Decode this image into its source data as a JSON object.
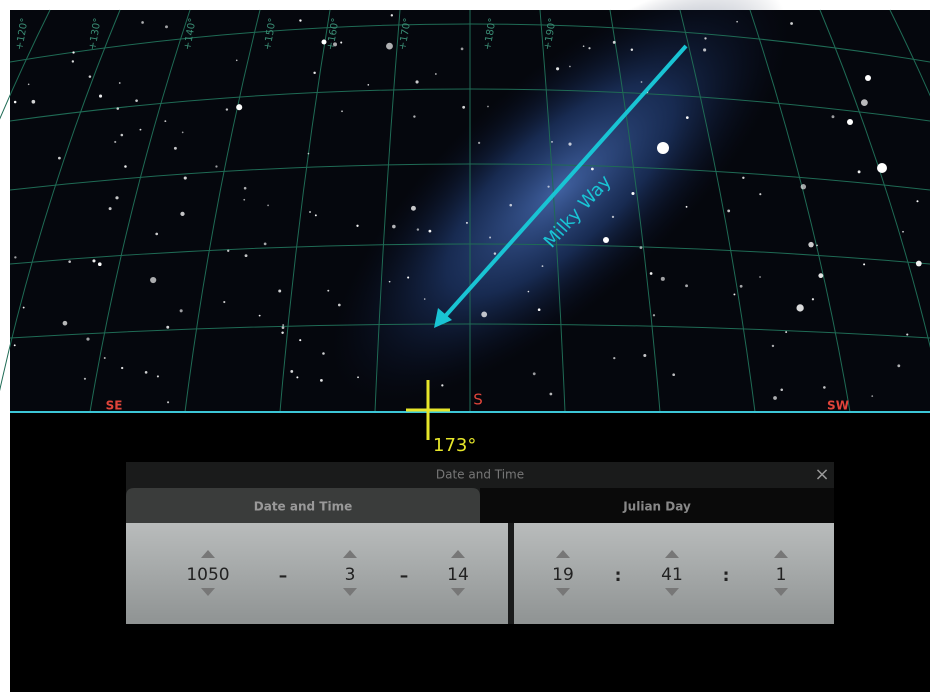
{
  "sky": {
    "grid_labels": [
      "+120°",
      "+130°",
      "+140°",
      "+150°",
      "+160°",
      "+170°",
      "+180°",
      "+190°"
    ],
    "annotation": "Milky Way",
    "compass": [
      "SE",
      "S",
      "SW"
    ],
    "azimuth": "173°"
  },
  "dialog": {
    "title": "Date and Time",
    "close": "×",
    "tabs": [
      "Date and Time",
      "Julian Day"
    ],
    "date": {
      "year": "1050",
      "month": "3",
      "day": "14",
      "separators": [
        "–",
        "–"
      ]
    },
    "time": {
      "hour": "19",
      "minute": "41",
      "second": "1",
      "separators": [
        ":",
        ":"
      ]
    }
  }
}
